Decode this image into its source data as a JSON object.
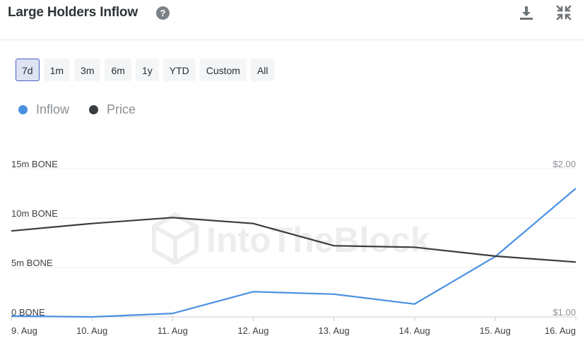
{
  "header": {
    "title": "Large Holders Inflow",
    "help_icon": "question-circle-icon",
    "download_icon": "download-icon",
    "collapse_icon": "collapse-arrows-icon"
  },
  "ranges": [
    {
      "label": "7d",
      "active": true
    },
    {
      "label": "1m",
      "active": false
    },
    {
      "label": "3m",
      "active": false
    },
    {
      "label": "6m",
      "active": false
    },
    {
      "label": "1y",
      "active": false
    },
    {
      "label": "YTD",
      "active": false
    },
    {
      "label": "Custom",
      "active": false
    },
    {
      "label": "All",
      "active": false
    }
  ],
  "legend": [
    {
      "label": "Inflow",
      "color": "#4a90e2"
    },
    {
      "label": "Price",
      "color": "#3a3d40"
    }
  ],
  "watermark": "IntoTheBlock",
  "chart_data": {
    "type": "line",
    "x": [
      "9. Aug",
      "10. Aug",
      "11. Aug",
      "12. Aug",
      "13. Aug",
      "14. Aug",
      "15. Aug",
      "16. Aug"
    ],
    "series": [
      {
        "name": "Inflow",
        "axis": "left",
        "color": "#4a90e2",
        "values": [
          0.08,
          0.0,
          0.35,
          2.55,
          2.3,
          1.3,
          6.1,
          13.0
        ]
      },
      {
        "name": "Price",
        "axis": "right",
        "color": "#3a3d40",
        "values": [
          1.58,
          1.63,
          1.67,
          1.63,
          1.48,
          1.47,
          1.41,
          1.37
        ]
      }
    ],
    "y_left": {
      "ticks": [
        "0 BONE",
        "5m BONE",
        "10m BONE",
        "15m BONE"
      ],
      "unit": "m BONE",
      "range": [
        0,
        15
      ]
    },
    "y_right": {
      "ticks": [
        "$1.00",
        "$2.00"
      ],
      "range": [
        1.0,
        2.0
      ]
    },
    "grid": true
  }
}
